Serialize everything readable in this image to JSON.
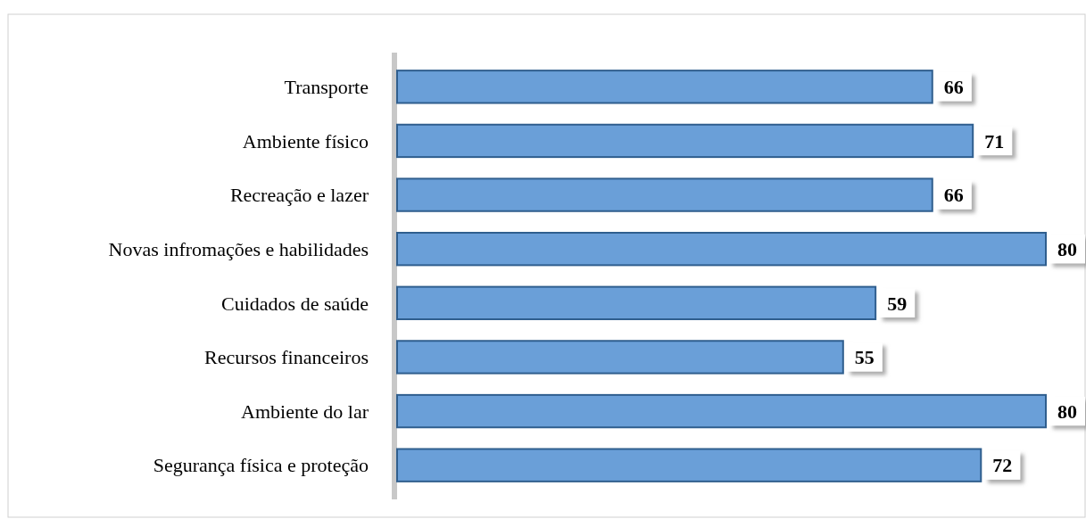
{
  "chart_data": {
    "type": "bar",
    "orientation": "horizontal",
    "categories": [
      "Transporte",
      "Ambiente físico",
      "Recreação e lazer",
      "Novas infromações e habilidades",
      "Cuidados de saúde",
      "Recursos financeiros",
      "Ambiente do lar",
      "Segurança física e proteção"
    ],
    "values": [
      66,
      71,
      66,
      80,
      59,
      55,
      80,
      72
    ],
    "color": "#6a9fd8",
    "data_labels": true,
    "grid": false
  }
}
